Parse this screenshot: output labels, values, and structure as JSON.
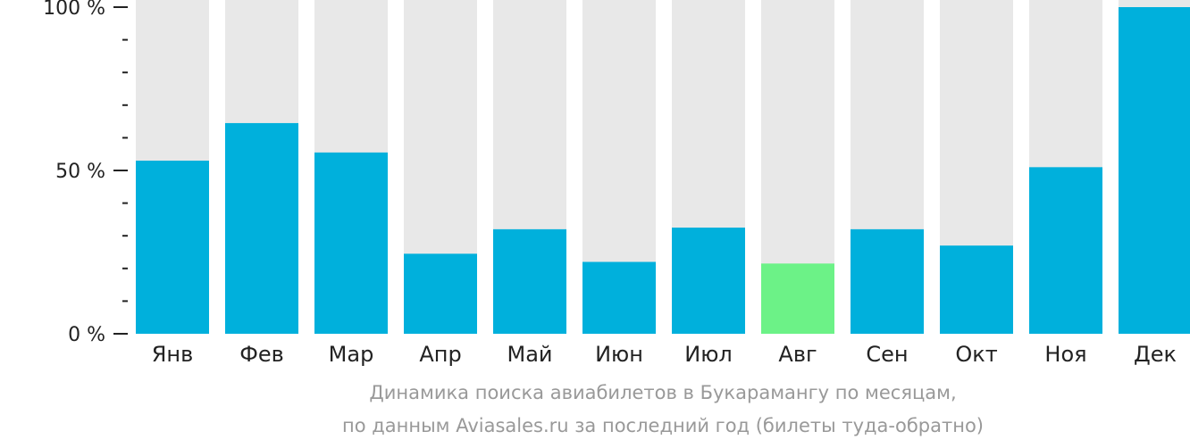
{
  "chart_data": {
    "type": "bar",
    "categories": [
      "Янв",
      "Фев",
      "Мар",
      "Апр",
      "Май",
      "Июн",
      "Июл",
      "Авг",
      "Сен",
      "Окт",
      "Ноя",
      "Дек"
    ],
    "values": [
      53,
      64.5,
      55.5,
      24.5,
      32,
      22,
      32.5,
      21.5,
      32,
      27,
      51,
      100
    ],
    "ylim": [
      0,
      100
    ],
    "yticks": [
      {
        "value": 0,
        "label": "0 %"
      },
      {
        "value": 50,
        "label": "50 %"
      },
      {
        "value": 100,
        "label": "100 %"
      }
    ],
    "minor_ticks": [
      10,
      20,
      30,
      40,
      60,
      70,
      80,
      90
    ],
    "highlight_index": 7,
    "colors": {
      "bar": "#00b0dc",
      "highlight": "#6cf287",
      "track": "#e8e8e8",
      "axis": "#222222"
    },
    "caption_line1": "Динамика поиска авиабилетов в Букарамангу по месяцам,",
    "caption_line2": "по данным Aviasales.ru за последний год (билеты туда-обратно)"
  }
}
